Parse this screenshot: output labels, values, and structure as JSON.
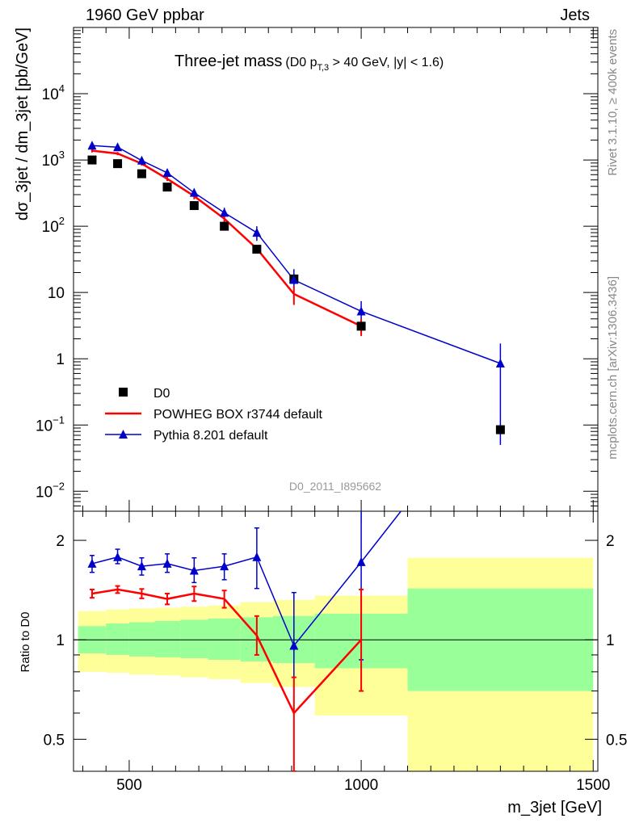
{
  "header": {
    "left": "1960 GeV ppbar",
    "right": "Jets"
  },
  "side_text": {
    "rivet": "Rivet 3.1.10, ≥ 400k events",
    "mcplots": "mcplots.cern.ch [arXiv:1306.3436]"
  },
  "colors": {
    "data": "#000000",
    "powheg": "#ff0000",
    "pythia": "#0000cc",
    "band_inner": "#99ff99",
    "band_outer": "#ffff99"
  },
  "chart_data": [
    {
      "type": "scatter",
      "title": "Three-jet mass",
      "title_detail": {
        "prefix": "(D0 p",
        "subscript": "T,3",
        "suffix": " > 40 GeV, |y| < 1.6)"
      },
      "ylabel": "dσ_3jet / dm_3jet [pb/GeV]",
      "xlabel": "m_3jet [GeV]",
      "yscale": "log",
      "xlim": [
        380,
        1510
      ],
      "ylim": [
        0.005,
        100000
      ],
      "y_ticks": [
        {
          "value": 10000,
          "mant": "10",
          "exp": "4"
        },
        {
          "value": 1000,
          "mant": "10",
          "exp": "3"
        },
        {
          "value": 100,
          "mant": "10",
          "exp": "2"
        },
        {
          "value": 10,
          "mant": "10",
          "exp": ""
        },
        {
          "value": 1,
          "mant": "1",
          "exp": ""
        },
        {
          "value": 0.1,
          "mant": "10",
          "exp": "−1"
        },
        {
          "value": 0.01,
          "mant": "10",
          "exp": "−2"
        }
      ],
      "watermark": "D0_2011_I895662",
      "legend": {
        "position": "bottom-left",
        "entries": [
          "D0",
          "POWHEG BOX r3744 default",
          "Pythia 8.201 default"
        ]
      },
      "series": [
        {
          "name": "D0",
          "marker": "square",
          "x": [
            420,
            475,
            527,
            582,
            640,
            705,
            775,
            855,
            1000,
            1300
          ],
          "y": [
            1000,
            880,
            620,
            390,
            205,
            100,
            45,
            16,
            3.1,
            0.085
          ]
        },
        {
          "name": "POWHEG BOX r3744 default",
          "marker": "line",
          "x": [
            420,
            475,
            527,
            582,
            640,
            705,
            775,
            855,
            1000
          ],
          "y": [
            1380,
            1250,
            880,
            520,
            285,
            130,
            46,
            9.5,
            3.1
          ],
          "yerr_lo": [
            80,
            70,
            60,
            40,
            30,
            20,
            6,
            3,
            0.9
          ],
          "yerr_hi": [
            80,
            70,
            60,
            40,
            30,
            20,
            6,
            3,
            0.9
          ]
        },
        {
          "name": "Pythia 8.201 default",
          "marker": "triangle",
          "x": [
            420,
            475,
            527,
            582,
            640,
            705,
            775,
            855,
            1000,
            1300
          ],
          "y": [
            1650,
            1560,
            980,
            640,
            320,
            160,
            80,
            15.5,
            5.2,
            0.85
          ],
          "yerr_lo": [
            120,
            110,
            80,
            70,
            50,
            30,
            20,
            5,
            2.2,
            0.8
          ],
          "yerr_hi": [
            120,
            110,
            80,
            70,
            50,
            30,
            20,
            7,
            2.2,
            0.85
          ]
        }
      ]
    },
    {
      "type": "line",
      "ylabel": "Ratio to D0",
      "xlabel": "m_3jet [GeV]",
      "yscale": "log",
      "xlim": [
        380,
        1510
      ],
      "ylim": [
        0.4,
        2.45
      ],
      "y_ticks": [
        {
          "value": 0.5,
          "label": "0.5"
        },
        {
          "value": 1,
          "label": "1"
        },
        {
          "value": 2,
          "label": "2"
        }
      ],
      "x_ticks": [
        {
          "value": 500,
          "label": "500"
        },
        {
          "value": 1000,
          "label": "1000"
        },
        {
          "value": 1500,
          "label": "1500"
        }
      ],
      "bands": [
        {
          "x0": 390,
          "x1": 450,
          "inner": [
            0.91,
            1.1
          ],
          "outer": [
            0.8,
            1.22
          ]
        },
        {
          "x0": 450,
          "x1": 500,
          "inner": [
            0.9,
            1.12
          ],
          "outer": [
            0.795,
            1.235
          ]
        },
        {
          "x0": 500,
          "x1": 555,
          "inner": [
            0.89,
            1.13
          ],
          "outer": [
            0.785,
            1.245
          ]
        },
        {
          "x0": 555,
          "x1": 610,
          "inner": [
            0.885,
            1.14
          ],
          "outer": [
            0.78,
            1.25
          ]
        },
        {
          "x0": 610,
          "x1": 670,
          "inner": [
            0.88,
            1.15
          ],
          "outer": [
            0.77,
            1.26
          ]
        },
        {
          "x0": 670,
          "x1": 740,
          "inner": [
            0.87,
            1.16
          ],
          "outer": [
            0.76,
            1.27
          ]
        },
        {
          "x0": 740,
          "x1": 810,
          "inner": [
            0.86,
            1.17
          ],
          "outer": [
            0.74,
            1.3
          ]
        },
        {
          "x0": 810,
          "x1": 900,
          "inner": [
            0.85,
            1.18
          ],
          "outer": [
            0.72,
            1.32
          ]
        },
        {
          "x0": 900,
          "x1": 1100,
          "inner": [
            0.82,
            1.2
          ],
          "outer": [
            0.59,
            1.36
          ]
        },
        {
          "x0": 1100,
          "x1": 1500,
          "inner": [
            0.7,
            1.43
          ],
          "outer": [
            0.4,
            1.77
          ]
        }
      ],
      "series": [
        {
          "name": "POWHEG BOX r3744 default",
          "x": [
            420,
            475,
            527,
            582,
            640,
            705,
            775,
            855,
            1000
          ],
          "y": [
            1.38,
            1.42,
            1.38,
            1.33,
            1.38,
            1.33,
            1.03,
            0.6,
            1.0
          ],
          "yerr_lo": [
            0.04,
            0.035,
            0.045,
            0.05,
            0.07,
            0.08,
            0.13,
            0.25,
            0.3
          ],
          "yerr_hi": [
            0.04,
            0.035,
            0.045,
            0.05,
            0.07,
            0.08,
            0.15,
            0.17,
            0.42
          ]
        },
        {
          "name": "Pythia 8.201 default",
          "x": [
            420,
            475,
            527,
            582,
            640,
            705,
            775,
            855,
            1000,
            1100
          ],
          "y": [
            1.7,
            1.78,
            1.67,
            1.7,
            1.62,
            1.67,
            1.78,
            0.96,
            1.72,
            2.6
          ],
          "yerr_lo": [
            0.1,
            0.08,
            0.1,
            0.1,
            0.13,
            0.15,
            0.35,
            0.56,
            0.85,
            0
          ],
          "yerr_hi": [
            0.1,
            0.1,
            0.1,
            0.12,
            0.15,
            0.15,
            0.4,
            0.43,
            1.0,
            0
          ]
        }
      ]
    }
  ]
}
